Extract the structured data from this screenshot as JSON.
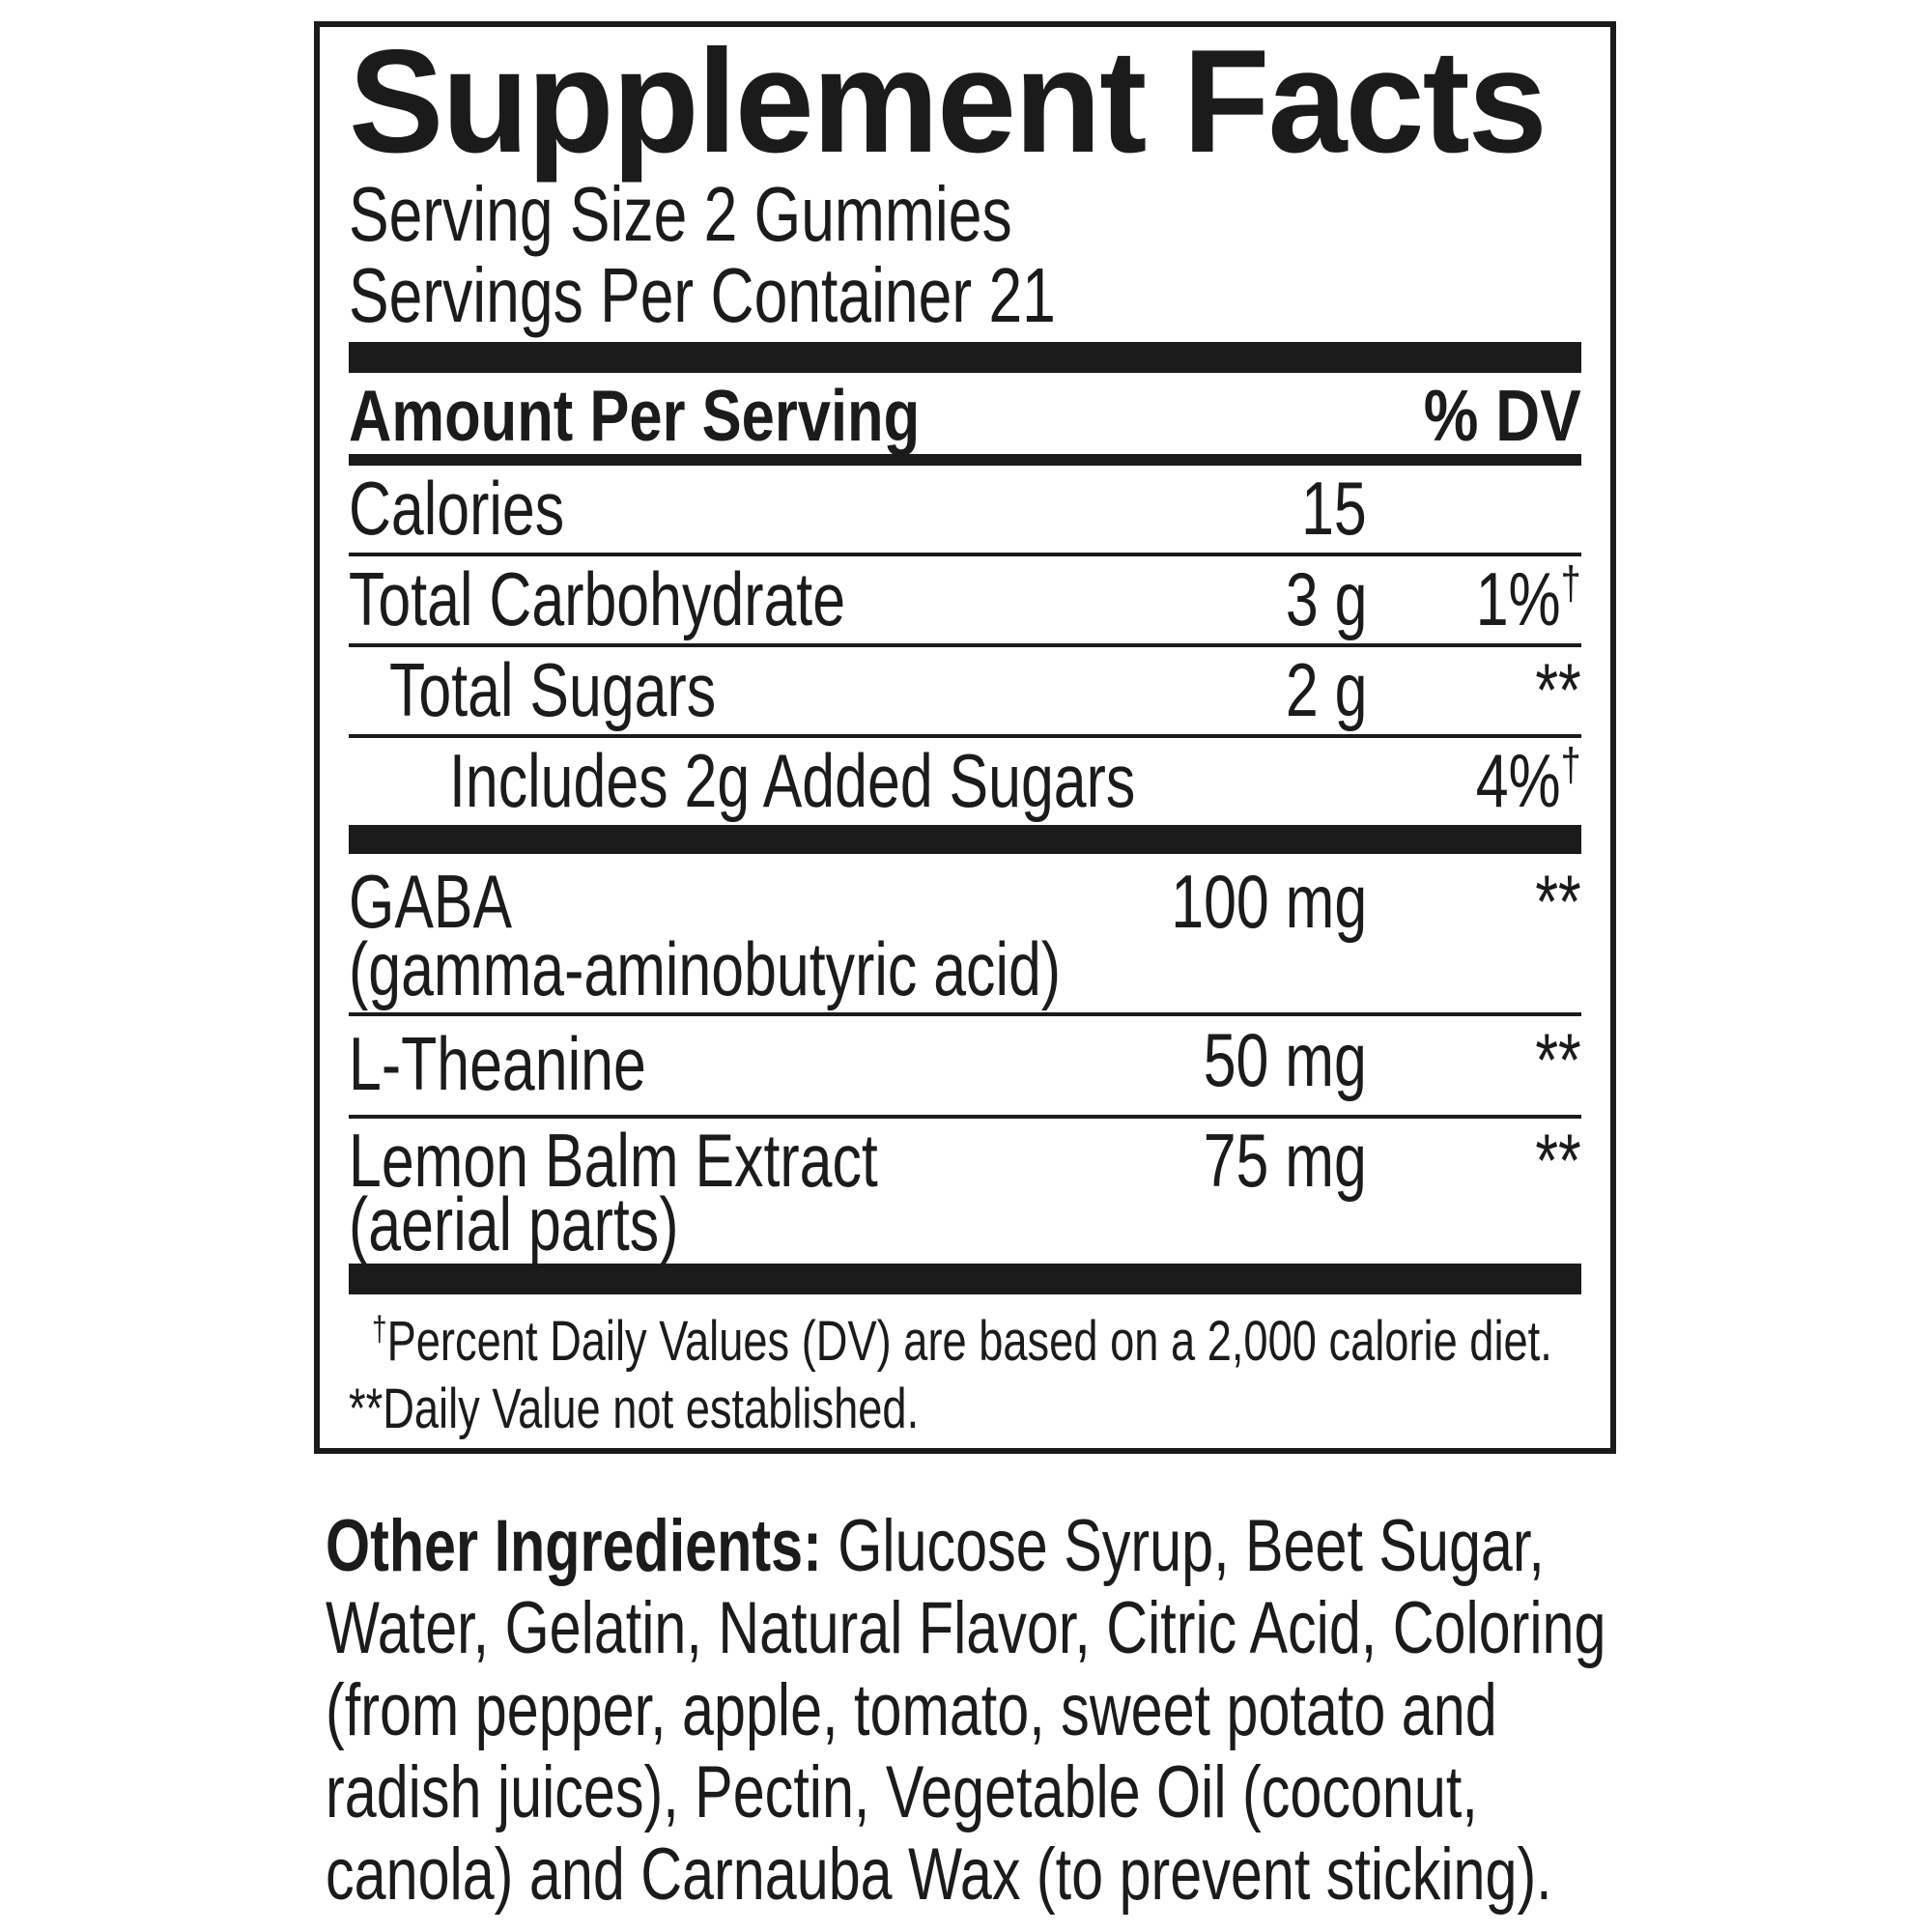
{
  "panel": {
    "title": "Supplement Facts",
    "serving_size": "Serving Size 2 Gummies",
    "servings_per_container": "Servings Per Container 21",
    "columns": {
      "amount": "Amount Per Serving",
      "dv": "% DV"
    },
    "rows": [
      {
        "name": "Calories",
        "amount": "15",
        "dv": ""
      },
      {
        "name": "Total Carbohydrate",
        "amount": "3 g",
        "dv": "1%",
        "dv_sup": "†"
      },
      {
        "name": "Total Sugars",
        "amount": "2 g",
        "dv": "**"
      },
      {
        "name": "Includes 2g Added Sugars",
        "amount": "",
        "dv": "4%",
        "dv_sup": "†"
      },
      {
        "name": "GABA",
        "name_line2": "(gamma-aminobutyric acid)",
        "amount": "100 mg",
        "dv": "**"
      },
      {
        "name": "L-Theanine",
        "amount": "50 mg",
        "dv": "**"
      },
      {
        "name": "Lemon Balm Extract",
        "name_line2": "(aerial parts)",
        "amount": "75 mg",
        "dv": "**"
      }
    ],
    "footnotes": {
      "dagger_symbol": "†",
      "dagger_text": "Percent Daily Values (DV) are based on a 2,000 calorie diet.",
      "not_established": "**Daily Value not established."
    }
  },
  "other_ingredients": {
    "label": "Other Ingredients:",
    "line1_rest": " Glucose Syrup, Beet Sugar,",
    "line2": "Water, Gelatin, Natural Flavor, Citric Acid, Coloring",
    "line3": "(from pepper, apple, tomato, sweet potato and",
    "line4": "radish juices), Pectin, Vegetable Oil (coconut,",
    "line5": "canola) and Carnauba Wax (to prevent sticking)."
  },
  "colors": {
    "ink": "#1b1b1b",
    "background": "#ffffff"
  }
}
